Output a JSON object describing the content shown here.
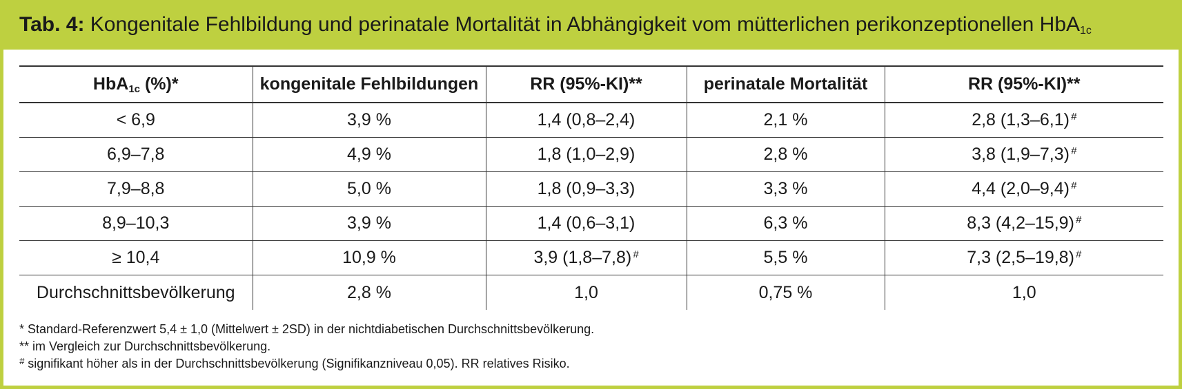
{
  "header": {
    "tab_label": "Tab. 4:",
    "title_main": "Kongenitale Fehlbildung und perinatale Mortalität in Abhängigkeit vom mütterlichen perikonzeptionellen HbA",
    "title_sub": "1c"
  },
  "table": {
    "columns": [
      {
        "main": "HbA",
        "sub": "1c",
        "rest": " (%)*"
      },
      {
        "main": "kongenitale Fehlbildungen"
      },
      {
        "main": "RR (95%-KI)**"
      },
      {
        "main": "perinatale Mortalität"
      },
      {
        "main": "RR (95%-KI)**"
      }
    ],
    "rows": [
      [
        "< 6,9",
        "3,9 %",
        "1,4 (0,8–2,4)",
        "2,1 %",
        "2,8 (1,3–6,1)"
      ],
      [
        "6,9–7,8",
        "4,9 %",
        "1,8 (1,0–2,9)",
        "2,8 %",
        "3,8 (1,9–7,3)"
      ],
      [
        "7,9–8,8",
        "5,0 %",
        "1,8 (0,9–3,3)",
        "3,3 %",
        "4,4 (2,0–9,4)"
      ],
      [
        "8,9–10,3",
        "3,9 %",
        "1,4 (0,6–3,1)",
        "6,3 %",
        "8,3 (4,2–15,9)"
      ],
      [
        "≥ 10,4",
        "10,9 %",
        "3,9 (1,8–7,8)",
        "5,5 %",
        "7,3 (2,5–19,8)"
      ],
      [
        "Durchschnittsbevölkerung",
        "2,8 %",
        "1,0",
        "0,75 %",
        "1,0"
      ]
    ],
    "significance_mark": "#"
  },
  "footnotes": {
    "fn1": "* Standard-Referenzwert 5,4 ± 1,0 (Mittelwert ± 2SD) in der nichtdiabetischen Durchschnittsbevölkerung.",
    "fn2": "** im Vergleich zur Durchschnittsbevölkerung.",
    "fn3_mark": "#",
    "fn3_text": " signifikant höher als in der Durchschnittsbevölkerung (Signifikanzniveau 0,05). RR relatives Risiko."
  },
  "colors": {
    "accent": "#bed040",
    "text": "#1a1a1a",
    "rule": "#333333"
  }
}
